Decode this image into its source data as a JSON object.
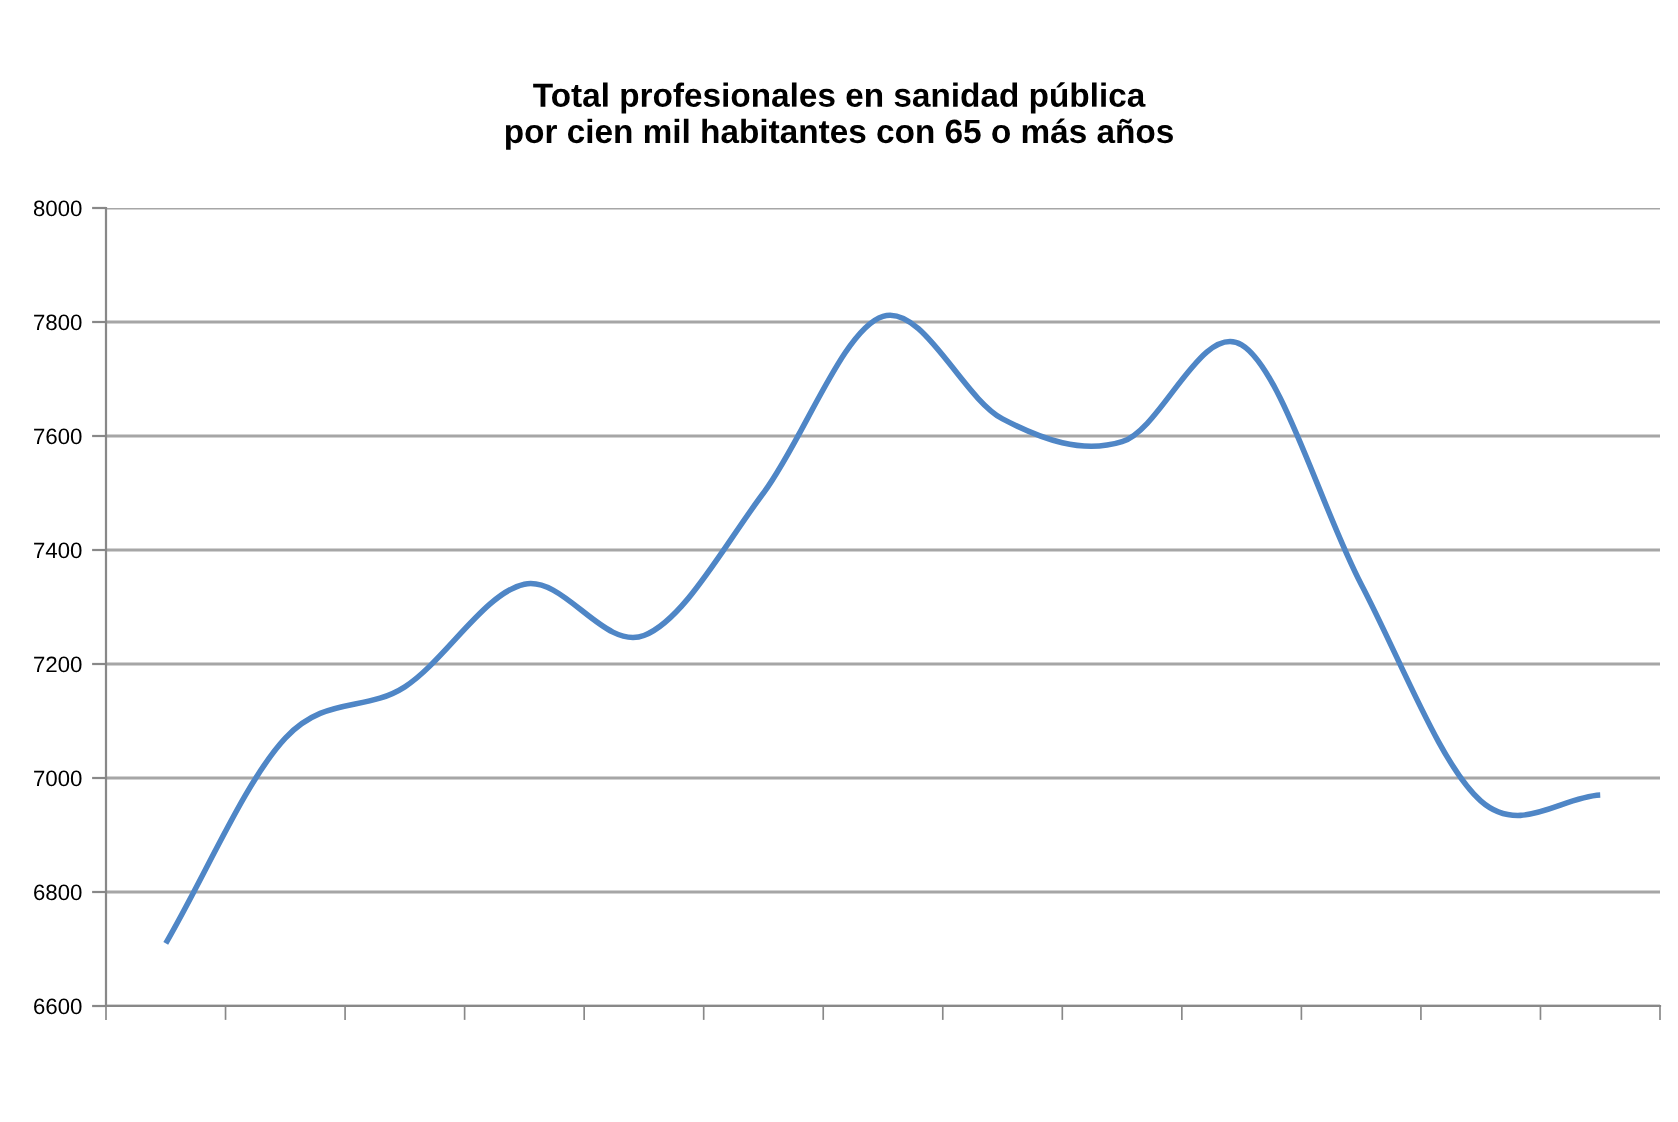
{
  "chart_data": {
    "type": "line",
    "title": "Total profesionales en sanidad pública\npor cien mil habitantes con 65 o más años",
    "categories": [
      null,
      null,
      null,
      null,
      null,
      null,
      null,
      null,
      null,
      null,
      null,
      null,
      null
    ],
    "series": [
      {
        "color": "#4f86c6",
        "values": [
          6710,
          7070,
          7160,
          7340,
          7250,
          7500,
          7810,
          7630,
          7590,
          7760,
          7340,
          6960,
          6970
        ]
      }
    ],
    "ylim": [
      6600,
      8000
    ],
    "yticks": [
      6600,
      6800,
      7000,
      7200,
      7400,
      7600,
      7800,
      8000
    ],
    "grid": "y",
    "marker": "none",
    "line_style": "solid",
    "tick_labels": "y"
  }
}
